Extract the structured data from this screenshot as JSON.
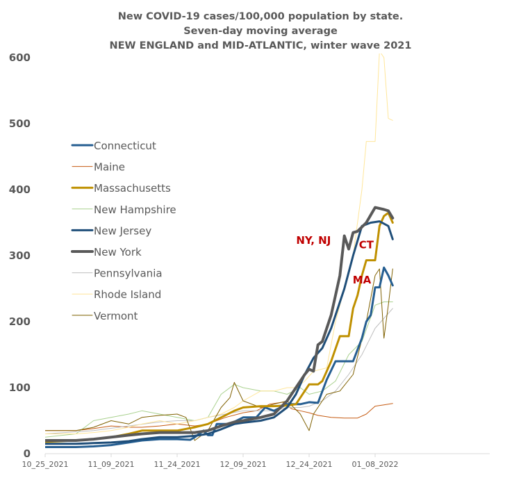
{
  "chart_data": {
    "type": "line",
    "title": [
      "New COVID-19 cases/100,000 population by state.",
      "Seven-day moving average",
      "NEW ENGLAND and MID-ATLANTIC, winter wave 2021"
    ],
    "xlabel": "",
    "ylabel": "",
    "x_ticks": [
      "10_25_2021",
      "11_09_2021",
      "11_24_2021",
      "12_09_2021",
      "12_24_2021",
      "01_08_2022"
    ],
    "ylim": [
      0,
      600
    ],
    "y_ticks": [
      "0",
      "100",
      "200",
      "300",
      "400",
      "500",
      "600"
    ],
    "grid": false,
    "legend_position": "left",
    "x_start": "2021-10-25",
    "series": [
      {
        "name": "Connecticut",
        "color": "#255e91",
        "width": 3,
        "x": [
          "2021-10-25",
          "2021-11-01",
          "2021-11-05",
          "2021-11-09",
          "2021-11-13",
          "2021-11-16",
          "2021-11-20",
          "2021-11-24",
          "2021-11-27",
          "2021-11-28",
          "2021-11-30",
          "2021-12-01",
          "2021-12-02",
          "2021-12-03",
          "2021-12-06",
          "2021-12-09",
          "2021-12-12",
          "2021-12-14",
          "2021-12-16",
          "2021-12-19",
          "2021-12-22",
          "2021-12-24",
          "2021-12-26",
          "2021-12-28",
          "2021-12-30",
          "2022-01-01",
          "2022-01-03",
          "2022-01-05",
          "2022-01-06",
          "2022-01-07",
          "2022-01-08",
          "2022-01-09",
          "2022-01-10",
          "2022-01-11",
          "2022-01-12"
        ],
        "values": [
          10,
          10,
          11,
          13,
          17,
          20,
          22,
          22,
          21,
          25,
          35,
          28,
          28,
          45,
          45,
          55,
          55,
          70,
          65,
          75,
          75,
          78,
          77,
          112,
          140,
          140,
          140,
          175,
          200,
          210,
          252,
          252,
          282,
          270,
          255
        ]
      },
      {
        "name": "Maine",
        "color": "#c55a11",
        "width": 1,
        "x": [
          "2021-10-25",
          "2021-11-01",
          "2021-11-05",
          "2021-11-09",
          "2021-11-13",
          "2021-11-16",
          "2021-11-20",
          "2021-11-24",
          "2021-11-28",
          "2021-12-01",
          "2021-12-05",
          "2021-12-09",
          "2021-12-12",
          "2021-12-15",
          "2021-12-18",
          "2021-12-20",
          "2021-12-22",
          "2021-12-24",
          "2021-12-26",
          "2021-12-29",
          "2022-01-01",
          "2022-01-04",
          "2022-01-06",
          "2022-01-08",
          "2022-01-10",
          "2022-01-12"
        ],
        "values": [
          35,
          35,
          38,
          42,
          40,
          40,
          42,
          45,
          42,
          45,
          55,
          62,
          65,
          75,
          78,
          68,
          65,
          62,
          58,
          55,
          54,
          54,
          60,
          72,
          74,
          76
        ]
      },
      {
        "name": "Massachusetts",
        "color": "#bf9000",
        "width": 3,
        "x": [
          "2021-10-25",
          "2021-11-01",
          "2021-11-05",
          "2021-11-09",
          "2021-11-13",
          "2021-11-16",
          "2021-11-20",
          "2021-11-24",
          "2021-11-28",
          "2021-12-01",
          "2021-12-04",
          "2021-12-07",
          "2021-12-09",
          "2021-12-13",
          "2021-12-16",
          "2021-12-19",
          "2021-12-21",
          "2021-12-24",
          "2021-12-26",
          "2021-12-27",
          "2021-12-29",
          "2021-12-31",
          "2022-01-01",
          "2022-01-02",
          "2022-01-03",
          "2022-01-04",
          "2022-01-05",
          "2022-01-06",
          "2022-01-07",
          "2022-01-08",
          "2022-01-09",
          "2022-01-10",
          "2022-01-11",
          "2022-01-12"
        ],
        "values": [
          18,
          20,
          22,
          25,
          30,
          35,
          35,
          35,
          40,
          45,
          55,
          65,
          70,
          72,
          72,
          73,
          75,
          105,
          105,
          110,
          140,
          178,
          178,
          178,
          220,
          240,
          270,
          293,
          293,
          293,
          345,
          360,
          365,
          350
        ]
      },
      {
        "name": "New Hampshire",
        "color": "#a9d18e",
        "width": 1,
        "x": [
          "2021-10-25",
          "2021-11-01",
          "2021-11-05",
          "2021-11-09",
          "2021-11-13",
          "2021-11-16",
          "2021-11-20",
          "2021-11-24",
          "2021-11-28",
          "2021-12-01",
          "2021-12-04",
          "2021-12-07",
          "2021-12-09",
          "2021-12-13",
          "2021-12-16",
          "2021-12-19",
          "2021-12-22",
          "2021-12-24",
          "2021-12-27",
          "2021-12-30",
          "2022-01-02",
          "2022-01-05",
          "2022-01-08",
          "2022-01-10",
          "2022-01-12"
        ],
        "values": [
          25,
          30,
          50,
          55,
          60,
          65,
          60,
          55,
          50,
          55,
          90,
          105,
          100,
          95,
          95,
          90,
          100,
          90,
          95,
          110,
          150,
          170,
          225,
          230,
          230
        ]
      },
      {
        "name": "New Jersey",
        "color": "#1f4e79",
        "width": 3,
        "x": [
          "2021-10-25",
          "2021-11-01",
          "2021-11-05",
          "2021-11-09",
          "2021-11-13",
          "2021-11-16",
          "2021-11-20",
          "2021-11-24",
          "2021-11-28",
          "2021-12-01",
          "2021-12-04",
          "2021-12-07",
          "2021-12-09",
          "2021-12-13",
          "2021-12-16",
          "2021-12-19",
          "2021-12-21",
          "2021-12-23",
          "2021-12-25",
          "2021-12-27",
          "2021-12-29",
          "2022-01-01",
          "2022-01-03",
          "2022-01-05",
          "2022-01-07",
          "2022-01-09",
          "2022-01-11",
          "2022-01-12"
        ],
        "values": [
          15,
          15,
          16,
          17,
          19,
          22,
          25,
          25,
          27,
          30,
          37,
          45,
          47,
          50,
          55,
          70,
          90,
          120,
          145,
          160,
          190,
          250,
          300,
          345,
          350,
          352,
          345,
          325
        ]
      },
      {
        "name": "New York",
        "color": "#595959",
        "width": 4,
        "x": [
          "2021-10-25",
          "2021-11-01",
          "2021-11-05",
          "2021-11-09",
          "2021-11-13",
          "2021-11-16",
          "2021-11-20",
          "2021-11-24",
          "2021-11-28",
          "2021-12-01",
          "2021-12-04",
          "2021-12-07",
          "2021-12-09",
          "2021-12-13",
          "2021-12-16",
          "2021-12-19",
          "2021-12-21",
          "2021-12-23",
          "2021-12-24",
          "2021-12-25",
          "2021-12-26",
          "2021-12-27",
          "2021-12-29",
          "2021-12-31",
          "2022-01-01",
          "2022-01-02",
          "2022-01-03",
          "2022-01-04",
          "2022-01-06",
          "2022-01-08",
          "2022-01-10",
          "2022-01-11",
          "2022-01-12"
        ],
        "values": [
          20,
          20,
          22,
          25,
          28,
          30,
          32,
          32,
          32,
          35,
          42,
          48,
          50,
          55,
          60,
          80,
          100,
          120,
          128,
          125,
          165,
          170,
          210,
          270,
          330,
          310,
          335,
          337,
          350,
          373,
          370,
          368,
          357
        ]
      },
      {
        "name": "Pennsylvania",
        "color": "#bfbfbf",
        "width": 1,
        "x": [
          "2021-10-25",
          "2021-11-05",
          "2021-11-13",
          "2021-11-20",
          "2021-11-24",
          "2021-11-28",
          "2021-12-01",
          "2021-12-05",
          "2021-12-09",
          "2021-12-13",
          "2021-12-16",
          "2021-12-19",
          "2021-12-22",
          "2021-12-24",
          "2021-12-27",
          "2021-12-30",
          "2022-01-02",
          "2022-01-05",
          "2022-01-08",
          "2022-01-12"
        ],
        "values": [
          30,
          35,
          42,
          48,
          50,
          50,
          55,
          60,
          65,
          65,
          65,
          70,
          70,
          72,
          80,
          95,
          120,
          150,
          190,
          220
        ]
      },
      {
        "name": "Rhode Island",
        "color": "#ffe699",
        "width": 1,
        "x": [
          "2021-10-25",
          "2021-11-01",
          "2021-11-05",
          "2021-11-09",
          "2021-11-13",
          "2021-11-16",
          "2021-11-20",
          "2021-11-24",
          "2021-11-28",
          "2021-12-01",
          "2021-12-04",
          "2021-12-07",
          "2021-12-09",
          "2021-12-13",
          "2021-12-16",
          "2021-12-19",
          "2021-12-21",
          "2021-12-23",
          "2021-12-25",
          "2021-12-28",
          "2021-12-30",
          "2022-01-01",
          "2022-01-03",
          "2022-01-05",
          "2022-01-06",
          "2022-01-08",
          "2022-01-09",
          "2022-01-10",
          "2022-01-11",
          "2022-01-12"
        ],
        "values": [
          30,
          30,
          32,
          35,
          40,
          45,
          50,
          45,
          50,
          55,
          60,
          70,
          80,
          95,
          95,
          100,
          100,
          110,
          125,
          130,
          200,
          250,
          300,
          400,
          473,
          473,
          610,
          600,
          508,
          505
        ]
      },
      {
        "name": "Vermont",
        "color": "#7f6000",
        "width": 1,
        "x": [
          "2021-10-25",
          "2021-11-01",
          "2021-11-05",
          "2021-11-09",
          "2021-11-13",
          "2021-11-16",
          "2021-11-20",
          "2021-11-24",
          "2021-11-26",
          "2021-11-28",
          "2021-12-01",
          "2021-12-04",
          "2021-12-06",
          "2021-12-07",
          "2021-12-09",
          "2021-12-13",
          "2021-12-16",
          "2021-12-19",
          "2021-12-22",
          "2021-12-24",
          "2021-12-25",
          "2021-12-28",
          "2021-12-31",
          "2022-01-03",
          "2022-01-06",
          "2022-01-08",
          "2022-01-09",
          "2022-01-10",
          "2022-01-11",
          "2022-01-12"
        ],
        "values": [
          35,
          35,
          40,
          50,
          45,
          55,
          58,
          60,
          55,
          20,
          35,
          70,
          85,
          108,
          80,
          70,
          75,
          80,
          60,
          35,
          60,
          90,
          95,
          120,
          200,
          270,
          280,
          175,
          225,
          280
        ]
      }
    ],
    "annotations": [
      {
        "text": "NY, NJ",
        "x": "2021-12-25",
        "y": 318,
        "color": "#c00000"
      },
      {
        "text": "CT",
        "x": "2022-01-06",
        "y": 311,
        "color": "#c00000"
      },
      {
        "text": "MA",
        "x": "2022-01-05",
        "y": 258,
        "color": "#c00000"
      }
    ]
  }
}
